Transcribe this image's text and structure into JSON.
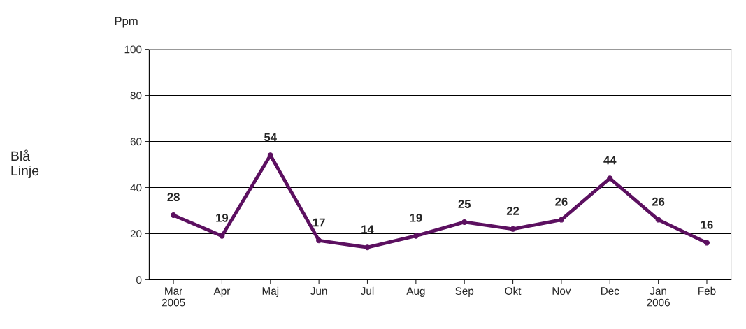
{
  "chart_data": {
    "type": "line",
    "title": "Ppm",
    "annotations": [
      "Blå\nLinje"
    ],
    "categories": [
      "Mar\n2005",
      "Apr",
      "Maj",
      "Jun",
      "Jul",
      "Aug",
      "Sep",
      "Okt",
      "Nov",
      "Dec",
      "Jan\n2006",
      "Feb"
    ],
    "series": [
      {
        "color": "#5c1060",
        "values": [
          28,
          19,
          54,
          17,
          14,
          19,
          25,
          22,
          26,
          44,
          26,
          16
        ]
      }
    ],
    "ylim": [
      0,
      100
    ],
    "yticks": [
      0,
      20,
      40,
      60,
      80,
      100
    ],
    "grid": "y",
    "data_labels": true,
    "marker": "circle",
    "line_style": "solid"
  }
}
